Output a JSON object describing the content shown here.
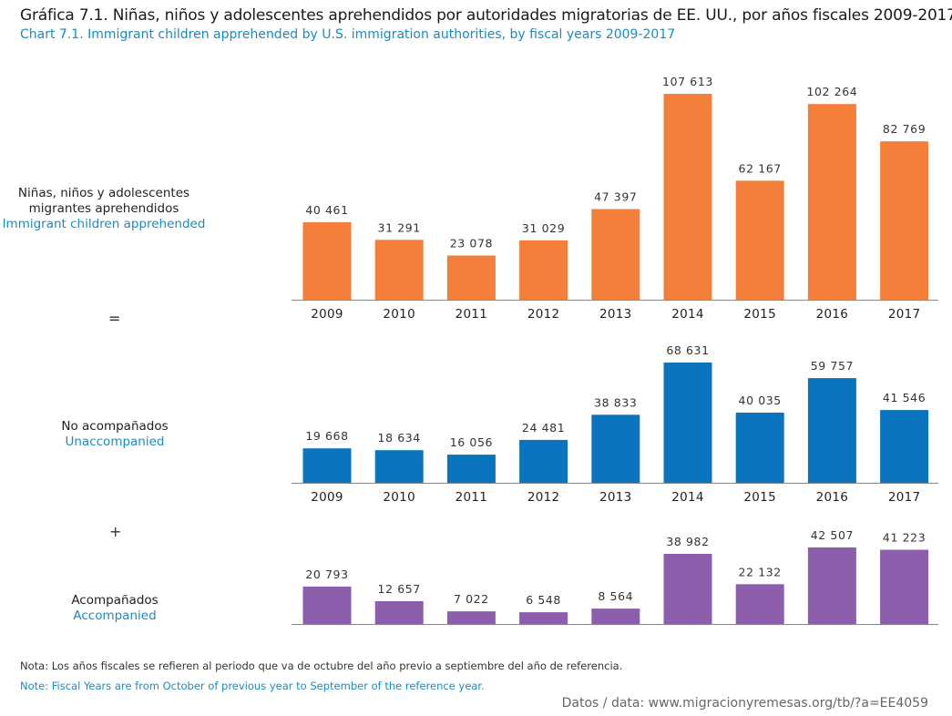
{
  "title_es": "Gráfica 7.1. Niñas, niños y adolescentes aprehendidos por autoridades migratorias de EE. UU., por años fiscales 2009-2017",
  "title_en": "Chart 7.1. Immigrant children apprehended by U.S. immigration authorities, by fiscal years 2009-2017",
  "row_labels": [
    {
      "es": "Niñas, niños y adolescentes migrantes aprehendidos",
      "en": "Immigrant children apprehended"
    },
    {
      "es": "No acompañados",
      "en": "Unaccompanied"
    },
    {
      "es": "Acompañados",
      "en": "Accompanied"
    }
  ],
  "operators": {
    "equals": "=",
    "plus": "+"
  },
  "chart_data": [
    {
      "type": "bar",
      "name": "Niñas, niños y adolescentes migrantes aprehendidos / Immigrant children apprehended",
      "color": "#f47f3a",
      "categories": [
        "2009",
        "2010",
        "2011",
        "2012",
        "2013",
        "2014",
        "2015",
        "2016",
        "2017"
      ],
      "values": [
        40461,
        31291,
        23078,
        31029,
        47397,
        107613,
        62167,
        102264,
        82769
      ],
      "labels": [
        "40 461",
        "31 291",
        "23 078",
        "31 029",
        "47 397",
        "107 613",
        "62 167",
        "102 264",
        "82 769"
      ],
      "show_ticks": true
    },
    {
      "type": "bar",
      "name": "No acompañados / Unaccompanied",
      "color": "#0a74bf",
      "categories": [
        "2009",
        "2010",
        "2011",
        "2012",
        "2013",
        "2014",
        "2015",
        "2016",
        "2017"
      ],
      "values": [
        19668,
        18634,
        16056,
        24481,
        38833,
        68631,
        40035,
        59757,
        41546
      ],
      "labels": [
        "19 668",
        "18 634",
        "16 056",
        "24 481",
        "38 833",
        "68 631",
        "40 035",
        "59 757",
        "41 546"
      ],
      "show_ticks": true
    },
    {
      "type": "bar",
      "name": "Acompañados / Accompanied",
      "color": "#8c5eab",
      "categories": [
        "2009",
        "2010",
        "2011",
        "2012",
        "2013",
        "2014",
        "2015",
        "2016",
        "2017"
      ],
      "values": [
        20793,
        12657,
        7022,
        6548,
        8564,
        38982,
        22132,
        42507,
        41223
      ],
      "labels": [
        "20 793",
        "12 657",
        "7 022",
        "6 548",
        "8 564",
        "38 982",
        "22 132",
        "42 507",
        "41 223"
      ],
      "show_ticks": false
    }
  ],
  "note_es": "Nota: Los años fiscales se refieren al periodo que va de octubre del año previo a septiembre del año de referencia.",
  "note_en": "Note: Fiscal Years are from October of previous year to September of the reference year.",
  "source": "Datos / data: www.migracionyremesas.org/tb/?a=EE4059"
}
